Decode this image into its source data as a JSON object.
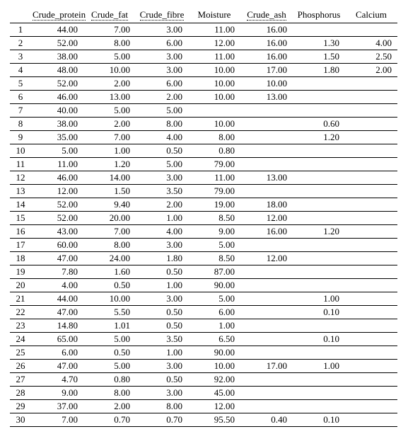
{
  "table": {
    "type": "table",
    "background_color": "#ffffff",
    "text_color": "#000000",
    "border_color": "#000000",
    "font_family": "Times New Roman",
    "font_size_pt": 10,
    "columns": [
      {
        "key": "Crude_protein",
        "label": "Crude_protein",
        "underline": true
      },
      {
        "key": "Crude_fat",
        "label": "Crude_fat",
        "underline": true
      },
      {
        "key": "Crude_fibre",
        "label": "Crude_fibre",
        "underline": true
      },
      {
        "key": "Moisture",
        "label": "Moisture",
        "underline": false
      },
      {
        "key": "Crude_ash",
        "label": "Crude_ash",
        "underline": true
      },
      {
        "key": "Phosphorus",
        "label": "Phosphorus",
        "underline": false
      },
      {
        "key": "Calcium",
        "label": "Calcium",
        "underline": false
      }
    ],
    "rows": [
      {
        "n": "1",
        "Crude_protein": "44.00",
        "Crude_fat": "7.00",
        "Crude_fibre": "3.00",
        "Moisture": "11.00",
        "Crude_ash": "16.00",
        "Phosphorus": "",
        "Calcium": ""
      },
      {
        "n": "2",
        "Crude_protein": "52.00",
        "Crude_fat": "8.00",
        "Crude_fibre": "6.00",
        "Moisture": "12.00",
        "Crude_ash": "16.00",
        "Phosphorus": "1.30",
        "Calcium": "4.00"
      },
      {
        "n": "3",
        "Crude_protein": "38.00",
        "Crude_fat": "5.00",
        "Crude_fibre": "3.00",
        "Moisture": "11.00",
        "Crude_ash": "16.00",
        "Phosphorus": "1.50",
        "Calcium": "2.50"
      },
      {
        "n": "4",
        "Crude_protein": "48.00",
        "Crude_fat": "10.00",
        "Crude_fibre": "3.00",
        "Moisture": "10.00",
        "Crude_ash": "17.00",
        "Phosphorus": "1.80",
        "Calcium": "2.00"
      },
      {
        "n": "5",
        "Crude_protein": "52.00",
        "Crude_fat": "2.00",
        "Crude_fibre": "6.00",
        "Moisture": "10.00",
        "Crude_ash": "10.00",
        "Phosphorus": "",
        "Calcium": ""
      },
      {
        "n": "6",
        "Crude_protein": "46.00",
        "Crude_fat": "13.00",
        "Crude_fibre": "2.00",
        "Moisture": "10.00",
        "Crude_ash": "13.00",
        "Phosphorus": "",
        "Calcium": ""
      },
      {
        "n": "7",
        "Crude_protein": "40.00",
        "Crude_fat": "5.00",
        "Crude_fibre": "5.00",
        "Moisture": "",
        "Crude_ash": "",
        "Phosphorus": "",
        "Calcium": ""
      },
      {
        "n": "8",
        "Crude_protein": "38.00",
        "Crude_fat": "2.00",
        "Crude_fibre": "8.00",
        "Moisture": "10.00",
        "Crude_ash": "",
        "Phosphorus": "0.60",
        "Calcium": ""
      },
      {
        "n": "9",
        "Crude_protein": "35.00",
        "Crude_fat": "7.00",
        "Crude_fibre": "4.00",
        "Moisture": "8.00",
        "Crude_ash": "",
        "Phosphorus": "1.20",
        "Calcium": ""
      },
      {
        "n": "10",
        "Crude_protein": "5.00",
        "Crude_fat": "1.00",
        "Crude_fibre": "0.50",
        "Moisture": "0.80",
        "Crude_ash": "",
        "Phosphorus": "",
        "Calcium": ""
      },
      {
        "n": "11",
        "Crude_protein": "11.00",
        "Crude_fat": "1.20",
        "Crude_fibre": "5.00",
        "Moisture": "79.00",
        "Crude_ash": "",
        "Phosphorus": "",
        "Calcium": ""
      },
      {
        "n": "12",
        "Crude_protein": "46.00",
        "Crude_fat": "14.00",
        "Crude_fibre": "3.00",
        "Moisture": "11.00",
        "Crude_ash": "13.00",
        "Phosphorus": "",
        "Calcium": ""
      },
      {
        "n": "13",
        "Crude_protein": "12.00",
        "Crude_fat": "1.50",
        "Crude_fibre": "3.50",
        "Moisture": "79.00",
        "Crude_ash": "",
        "Phosphorus": "",
        "Calcium": ""
      },
      {
        "n": "14",
        "Crude_protein": "52.00",
        "Crude_fat": "9.40",
        "Crude_fibre": "2.00",
        "Moisture": "19.00",
        "Crude_ash": "18.00",
        "Phosphorus": "",
        "Calcium": ""
      },
      {
        "n": "15",
        "Crude_protein": "52.00",
        "Crude_fat": "20.00",
        "Crude_fibre": "1.00",
        "Moisture": "8.50",
        "Crude_ash": "12.00",
        "Phosphorus": "",
        "Calcium": ""
      },
      {
        "n": "16",
        "Crude_protein": "43.00",
        "Crude_fat": "7.00",
        "Crude_fibre": "4.00",
        "Moisture": "9.00",
        "Crude_ash": "16.00",
        "Phosphorus": "1.20",
        "Calcium": ""
      },
      {
        "n": "17",
        "Crude_protein": "60.00",
        "Crude_fat": "8.00",
        "Crude_fibre": "3.00",
        "Moisture": "5.00",
        "Crude_ash": "",
        "Phosphorus": "",
        "Calcium": ""
      },
      {
        "n": "18",
        "Crude_protein": "47.00",
        "Crude_fat": "24.00",
        "Crude_fibre": "1.80",
        "Moisture": "8.50",
        "Crude_ash": "12.00",
        "Phosphorus": "",
        "Calcium": ""
      },
      {
        "n": "19",
        "Crude_protein": "7.80",
        "Crude_fat": "1.60",
        "Crude_fibre": "0.50",
        "Moisture": "87.00",
        "Crude_ash": "",
        "Phosphorus": "",
        "Calcium": ""
      },
      {
        "n": "20",
        "Crude_protein": "4.00",
        "Crude_fat": "0.50",
        "Crude_fibre": "1.00",
        "Moisture": "90.00",
        "Crude_ash": "",
        "Phosphorus": "",
        "Calcium": ""
      },
      {
        "n": "21",
        "Crude_protein": "44.00",
        "Crude_fat": "10.00",
        "Crude_fibre": "3.00",
        "Moisture": "5.00",
        "Crude_ash": "",
        "Phosphorus": "1.00",
        "Calcium": ""
      },
      {
        "n": "22",
        "Crude_protein": "47.00",
        "Crude_fat": "5.50",
        "Crude_fibre": "0.50",
        "Moisture": "6.00",
        "Crude_ash": "",
        "Phosphorus": "0.10",
        "Calcium": ""
      },
      {
        "n": "23",
        "Crude_protein": "14.80",
        "Crude_fat": "1.01",
        "Crude_fibre": "0.50",
        "Moisture": "1.00",
        "Crude_ash": "",
        "Phosphorus": "",
        "Calcium": ""
      },
      {
        "n": "24",
        "Crude_protein": "65.00",
        "Crude_fat": "5.00",
        "Crude_fibre": "3.50",
        "Moisture": "6.50",
        "Crude_ash": "",
        "Phosphorus": "0.10",
        "Calcium": ""
      },
      {
        "n": "25",
        "Crude_protein": "6.00",
        "Crude_fat": "0.50",
        "Crude_fibre": "1.00",
        "Moisture": "90.00",
        "Crude_ash": "",
        "Phosphorus": "",
        "Calcium": ""
      },
      {
        "n": "26",
        "Crude_protein": "47.00",
        "Crude_fat": "5.00",
        "Crude_fibre": "3.00",
        "Moisture": "10.00",
        "Crude_ash": "17.00",
        "Phosphorus": "1.00",
        "Calcium": ""
      },
      {
        "n": "27",
        "Crude_protein": "4.70",
        "Crude_fat": "0.80",
        "Crude_fibre": "0.50",
        "Moisture": "92.00",
        "Crude_ash": "",
        "Phosphorus": "",
        "Calcium": ""
      },
      {
        "n": "28",
        "Crude_protein": "9.00",
        "Crude_fat": "8.00",
        "Crude_fibre": "3.00",
        "Moisture": "45.00",
        "Crude_ash": "",
        "Phosphorus": "",
        "Calcium": ""
      },
      {
        "n": "29",
        "Crude_protein": "37.00",
        "Crude_fat": "2.00",
        "Crude_fibre": "8.00",
        "Moisture": "12.00",
        "Crude_ash": "",
        "Phosphorus": "",
        "Calcium": ""
      },
      {
        "n": "30",
        "Crude_protein": "7.00",
        "Crude_fat": "0.70",
        "Crude_fibre": "0.70",
        "Moisture": "95.50",
        "Crude_ash": "0.40",
        "Phosphorus": "0.10",
        "Calcium": ""
      }
    ]
  }
}
